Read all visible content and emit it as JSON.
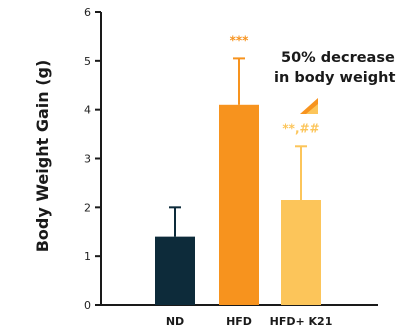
{
  "chart_data": {
    "type": "bar",
    "ylabel": "Body Weight Gain (g)",
    "ylim": [
      0,
      6
    ],
    "yticks": [
      "0",
      "1",
      "2",
      "3",
      "4",
      "5",
      "6"
    ],
    "categories": [
      "ND",
      "HFD",
      "HFD+ K21"
    ],
    "values": [
      1.4,
      4.1,
      2.15
    ],
    "errors": [
      0.6,
      0.95,
      1.1
    ],
    "significance": [
      "",
      "***",
      "**,##"
    ],
    "annotation": {
      "line1": "50% decrease",
      "line2": "in body weight"
    },
    "grid": false
  },
  "colors": {
    "bars": [
      "#0d2b3a",
      "#f7931e",
      "#fcc55a"
    ],
    "significance": [
      "#f7931e",
      "#f7931e",
      "#fcc55a"
    ],
    "axis": "#1a1a1a",
    "arrow_dark": "#f7931e",
    "arrow_light": "#fcc55a"
  }
}
